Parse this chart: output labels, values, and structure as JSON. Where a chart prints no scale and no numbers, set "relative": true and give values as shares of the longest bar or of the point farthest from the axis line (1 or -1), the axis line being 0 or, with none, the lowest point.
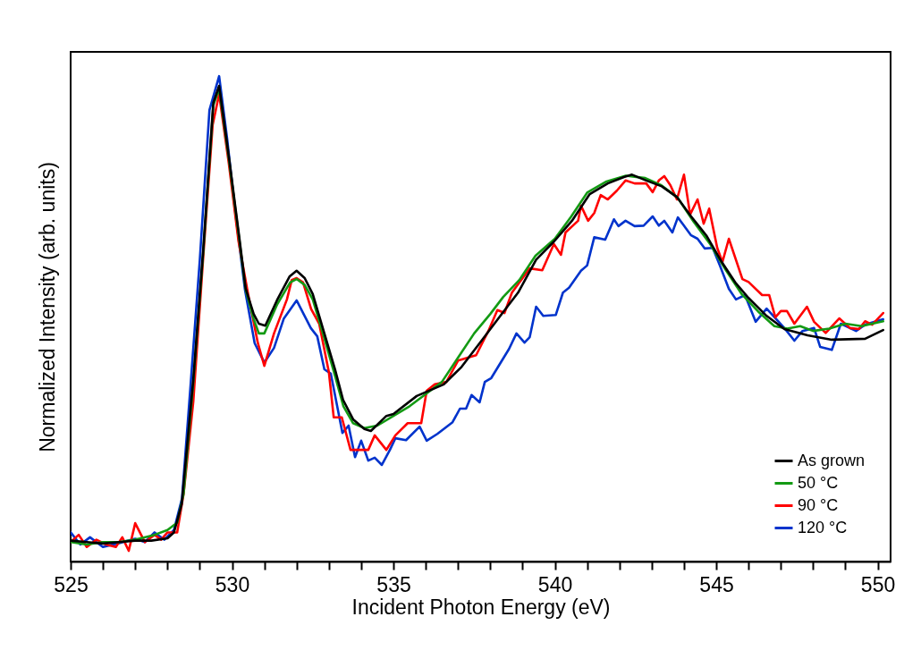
{
  "chart_data": {
    "type": "line",
    "relative": true,
    "xlabel": "Incident Photon Energy (eV)",
    "ylabel": "Normalized Intensity (arb. units)",
    "xlim": [
      525,
      550.4
    ],
    "xticks": [
      525,
      {
        "value": 526,
        "label": null
      },
      {
        "value": 527,
        "label": null
      },
      {
        "value": 528,
        "label": null
      },
      {
        "value": 529,
        "label": null
      },
      530,
      {
        "value": 531,
        "label": null
      },
      {
        "value": 532,
        "label": null
      },
      {
        "value": 533,
        "label": null
      },
      {
        "value": 534,
        "label": null
      },
      535,
      {
        "value": 536,
        "label": null
      },
      {
        "value": 537,
        "label": null
      },
      {
        "value": 538,
        "label": null
      },
      {
        "value": 539,
        "label": null
      },
      540,
      {
        "value": 541,
        "label": null
      },
      {
        "value": 542,
        "label": null
      },
      {
        "value": 543,
        "label": null
      },
      {
        "value": 544,
        "label": null
      },
      545,
      {
        "value": 546,
        "label": null
      },
      {
        "value": 547,
        "label": null
      },
      {
        "value": 548,
        "label": null
      },
      {
        "value": 549,
        "label": null
      },
      550
    ],
    "legend": "bottom right",
    "grid": false,
    "marker": "none",
    "line_style": "solid",
    "series": [
      {
        "name": "As grown",
        "color": "#000000",
        "x": [
          525,
          525.5,
          526,
          526.5,
          527,
          527.5,
          528,
          528.2,
          528.44,
          528.8,
          529.11,
          529.42,
          529.6,
          529.92,
          530.22,
          530.42,
          530.67,
          530.83,
          531.03,
          531.39,
          531.78,
          532.0,
          532.25,
          532.5,
          532.86,
          533.19,
          533.44,
          533.75,
          534.1,
          534.3,
          534.78,
          535.0,
          535.72,
          536.56,
          537.11,
          537.75,
          538.31,
          538.86,
          539.42,
          539.97,
          540.53,
          541.08,
          541.64,
          542.14,
          542.39,
          542.83,
          543.31,
          543.78,
          544.22,
          544.69,
          545.17,
          545.61,
          546.0,
          546.56,
          547.11,
          547.83,
          548.58,
          549.61,
          550.17
        ],
        "values": [
          0.043,
          0.04,
          0.037,
          0.04,
          0.043,
          0.043,
          0.048,
          0.06,
          0.118,
          0.376,
          0.645,
          0.945,
          0.98,
          0.825,
          0.67,
          0.563,
          0.51,
          0.49,
          0.486,
          0.538,
          0.587,
          0.599,
          0.584,
          0.551,
          0.47,
          0.396,
          0.333,
          0.293,
          0.273,
          0.269,
          0.3,
          0.304,
          0.341,
          0.365,
          0.401,
          0.457,
          0.506,
          0.554,
          0.622,
          0.659,
          0.702,
          0.757,
          0.779,
          0.792,
          0.797,
          0.785,
          0.773,
          0.751,
          0.711,
          0.672,
          0.617,
          0.573,
          0.543,
          0.506,
          0.479,
          0.466,
          0.457,
          0.459,
          0.477
        ]
      },
      {
        "name": "50 °C",
        "color": "#139a13",
        "x": [
          525,
          525.5,
          526,
          526.5,
          527,
          527.6,
          528.0,
          528.3,
          528.5,
          528.8,
          529.11,
          529.42,
          529.6,
          529.92,
          530.22,
          530.42,
          530.67,
          530.83,
          531.0,
          531.4,
          531.8,
          532.0,
          532.25,
          532.5,
          532.86,
          533.2,
          533.45,
          533.75,
          534.1,
          534.5,
          535.0,
          535.5,
          536.0,
          536.5,
          537.0,
          537.5,
          538.0,
          538.4,
          538.9,
          539.4,
          540.0,
          540.5,
          541.0,
          541.6,
          542.2,
          542.8,
          543.3,
          543.8,
          544.3,
          544.8,
          545.3,
          545.8,
          546.3,
          546.8,
          547.2,
          547.6,
          548.0,
          548.5,
          549.0,
          549.5,
          550.17
        ],
        "values": [
          0.04,
          0.035,
          0.04,
          0.04,
          0.045,
          0.055,
          0.065,
          0.08,
          0.14,
          0.37,
          0.64,
          0.94,
          0.975,
          0.82,
          0.665,
          0.56,
          0.5,
          0.47,
          0.47,
          0.53,
          0.575,
          0.582,
          0.57,
          0.54,
          0.46,
          0.38,
          0.32,
          0.285,
          0.275,
          0.28,
          0.3,
          0.32,
          0.345,
          0.37,
          0.42,
          0.47,
          0.51,
          0.545,
          0.58,
          0.63,
          0.665,
          0.71,
          0.76,
          0.783,
          0.795,
          0.79,
          0.775,
          0.75,
          0.7,
          0.655,
          0.6,
          0.55,
          0.515,
          0.485,
          0.48,
          0.485,
          0.475,
          0.48,
          0.49,
          0.485,
          0.495
        ]
      },
      {
        "name": "90 °C",
        "color": "#ff0000",
        "x": [
          525.0,
          525.25,
          525.5,
          525.8,
          526.1,
          526.4,
          526.6,
          526.8,
          527.0,
          527.3,
          527.6,
          527.8,
          528.0,
          528.3,
          528.5,
          528.8,
          529.1,
          529.4,
          529.6,
          529.9,
          530.2,
          530.5,
          530.8,
          531.0,
          531.3,
          531.7,
          531.85,
          532.0,
          532.2,
          532.45,
          532.7,
          533.0,
          533.15,
          533.4,
          533.67,
          533.9,
          534.22,
          534.42,
          534.78,
          535.06,
          535.44,
          535.86,
          536.03,
          536.28,
          536.64,
          537.0,
          537.56,
          537.94,
          538.22,
          538.44,
          538.67,
          539.22,
          539.61,
          539.97,
          540.19,
          540.33,
          540.72,
          540.81,
          541.03,
          541.22,
          541.42,
          541.64,
          541.92,
          542.19,
          542.47,
          542.83,
          543.03,
          543.22,
          543.39,
          543.58,
          543.78,
          544.0,
          544.19,
          544.42,
          544.61,
          544.78,
          545.03,
          545.19,
          545.39,
          545.81,
          546.0,
          546.42,
          546.64,
          546.83,
          547.0,
          547.19,
          547.42,
          547.81,
          548.03,
          548.39,
          548.81,
          549.14,
          549.42,
          549.61,
          549.83,
          550.17
        ],
        "values": [
          0.04,
          0.055,
          0.03,
          0.045,
          0.035,
          0.03,
          0.05,
          0.022,
          0.079,
          0.04,
          0.055,
          0.045,
          0.06,
          0.06,
          0.14,
          0.33,
          0.62,
          0.9,
          0.963,
          0.82,
          0.66,
          0.55,
          0.45,
          0.403,
          0.47,
          0.54,
          0.58,
          0.584,
          0.575,
          0.52,
          0.49,
          0.39,
          0.297,
          0.297,
          0.23,
          0.23,
          0.23,
          0.26,
          0.23,
          0.26,
          0.285,
          0.285,
          0.352,
          0.365,
          0.37,
          0.414,
          0.425,
          0.475,
          0.518,
          0.512,
          0.554,
          0.604,
          0.6,
          0.654,
          0.632,
          0.678,
          0.702,
          0.733,
          0.702,
          0.718,
          0.755,
          0.746,
          0.764,
          0.785,
          0.779,
          0.779,
          0.761,
          0.785,
          0.794,
          0.775,
          0.746,
          0.797,
          0.715,
          0.746,
          0.696,
          0.727,
          0.646,
          0.617,
          0.665,
          0.582,
          0.576,
          0.549,
          0.549,
          0.503,
          0.516,
          0.516,
          0.49,
          0.525,
          0.494,
          0.471,
          0.501,
          0.481,
          0.479,
          0.495,
          0.488,
          0.512
        ]
      },
      {
        "name": "120 °C",
        "color": "#0033cc",
        "x": [
          525,
          525.3,
          525.6,
          526,
          526.5,
          527,
          527.3,
          527.6,
          527.9,
          528.2,
          528.45,
          528.7,
          529.0,
          529.3,
          529.6,
          529.85,
          530.1,
          530.4,
          530.7,
          531.0,
          531.3,
          531.6,
          532.0,
          532.44,
          532.64,
          532.86,
          533.06,
          533.42,
          533.61,
          533.81,
          534.0,
          534.22,
          534.42,
          534.64,
          534.89,
          535.06,
          535.39,
          535.81,
          536.03,
          536.36,
          536.83,
          537.06,
          537.25,
          537.42,
          537.67,
          537.83,
          538.03,
          538.58,
          538.81,
          539.06,
          539.22,
          539.42,
          539.64,
          540.03,
          540.25,
          540.44,
          540.81,
          541.0,
          541.22,
          541.56,
          541.83,
          541.97,
          542.19,
          542.47,
          542.75,
          543.03,
          543.22,
          543.39,
          543.64,
          543.81,
          544.22,
          544.42,
          544.64,
          544.89,
          545.11,
          545.39,
          545.61,
          545.89,
          546.22,
          546.56,
          547.11,
          547.42,
          547.67,
          548.03,
          548.22,
          548.58,
          548.86,
          549.33,
          549.61,
          550.17
        ],
        "values": [
          0.06,
          0.035,
          0.05,
          0.03,
          0.038,
          0.047,
          0.04,
          0.06,
          0.045,
          0.065,
          0.13,
          0.35,
          0.62,
          0.93,
          1.0,
          0.87,
          0.72,
          0.56,
          0.45,
          0.41,
          0.44,
          0.5,
          0.538,
          0.481,
          0.464,
          0.396,
          0.387,
          0.265,
          0.28,
          0.215,
          0.249,
          0.208,
          0.214,
          0.199,
          0.23,
          0.254,
          0.25,
          0.278,
          0.249,
          0.263,
          0.287,
          0.315,
          0.315,
          0.343,
          0.328,
          0.37,
          0.378,
          0.438,
          0.47,
          0.451,
          0.462,
          0.525,
          0.506,
          0.508,
          0.554,
          0.564,
          0.599,
          0.61,
          0.668,
          0.663,
          0.705,
          0.691,
          0.702,
          0.691,
          0.692,
          0.711,
          0.692,
          0.702,
          0.678,
          0.709,
          0.672,
          0.665,
          0.645,
          0.646,
          0.61,
          0.562,
          0.54,
          0.549,
          0.494,
          0.521,
          0.481,
          0.455,
          0.475,
          0.481,
          0.442,
          0.436,
          0.49,
          0.475,
          0.488,
          0.499
        ]
      }
    ]
  }
}
